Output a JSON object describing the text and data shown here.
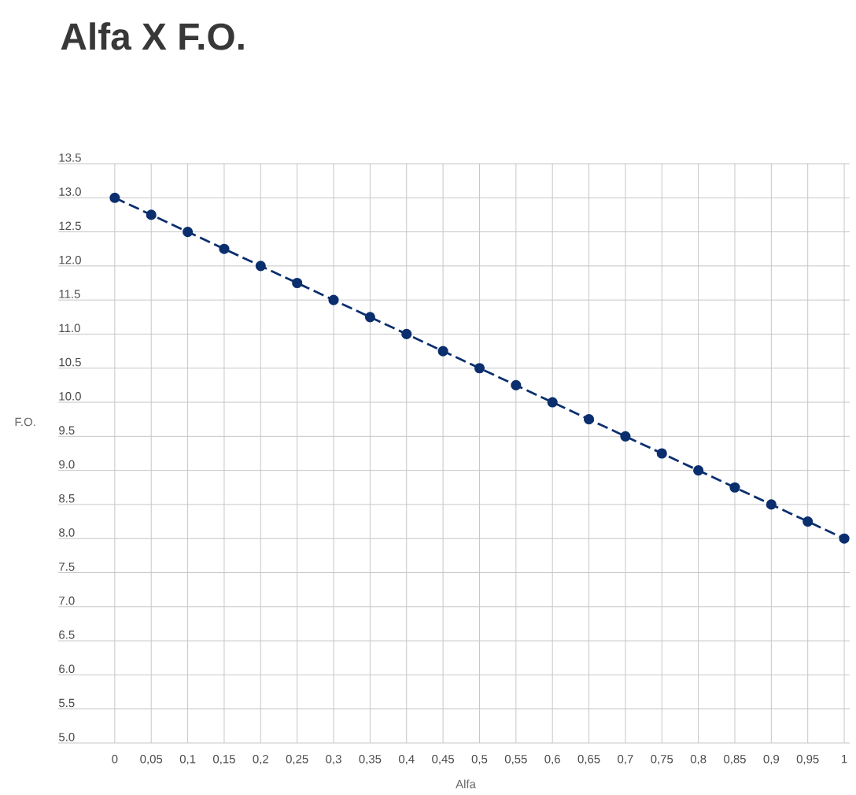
{
  "chart_data": {
    "type": "line",
    "title": "Alfa X F.O.",
    "xlabel": "Alfa",
    "ylabel": "F.O.",
    "categories": [
      "0",
      "0,05",
      "0,1",
      "0,15",
      "0,2",
      "0,25",
      "0,3",
      "0,35",
      "0,4",
      "0,45",
      "0,5",
      "0,55",
      "0,6",
      "0,65",
      "0,7",
      "0,75",
      "0,8",
      "0,85",
      "0,9",
      "0,95",
      "1"
    ],
    "values": [
      13.0,
      12.75,
      12.5,
      12.25,
      12.0,
      11.75,
      11.5,
      11.25,
      11.0,
      10.75,
      10.5,
      10.25,
      10.0,
      9.75,
      9.5,
      9.25,
      9.0,
      8.75,
      8.5,
      8.25,
      8.0
    ],
    "color": "#0b2f6e",
    "ylim": [
      5.0,
      13.5
    ],
    "yticks": [
      {
        "value": 5.0,
        "label": "5.0"
      },
      {
        "value": 5.5,
        "label": "5.5"
      },
      {
        "value": 6.0,
        "label": "6.0"
      },
      {
        "value": 6.5,
        "label": "6.5"
      },
      {
        "value": 7.0,
        "label": "7.0"
      },
      {
        "value": 7.5,
        "label": "7.5"
      },
      {
        "value": 8.0,
        "label": "8.0"
      },
      {
        "value": 8.5,
        "label": "8.5"
      },
      {
        "value": 9.0,
        "label": "9.0"
      },
      {
        "value": 9.5,
        "label": "9.5"
      },
      {
        "value": 10.0,
        "label": "10.0"
      },
      {
        "value": 10.5,
        "label": "10.5"
      },
      {
        "value": 11.0,
        "label": "11.0"
      },
      {
        "value": 11.5,
        "label": "11.5"
      },
      {
        "value": 12.0,
        "label": "12.0"
      },
      {
        "value": 12.5,
        "label": "12.5"
      },
      {
        "value": 13.0,
        "label": "13.0"
      },
      {
        "value": 13.5,
        "label": "13.5"
      }
    ],
    "grid": true,
    "marker": "circle",
    "line_style": "dashed"
  }
}
